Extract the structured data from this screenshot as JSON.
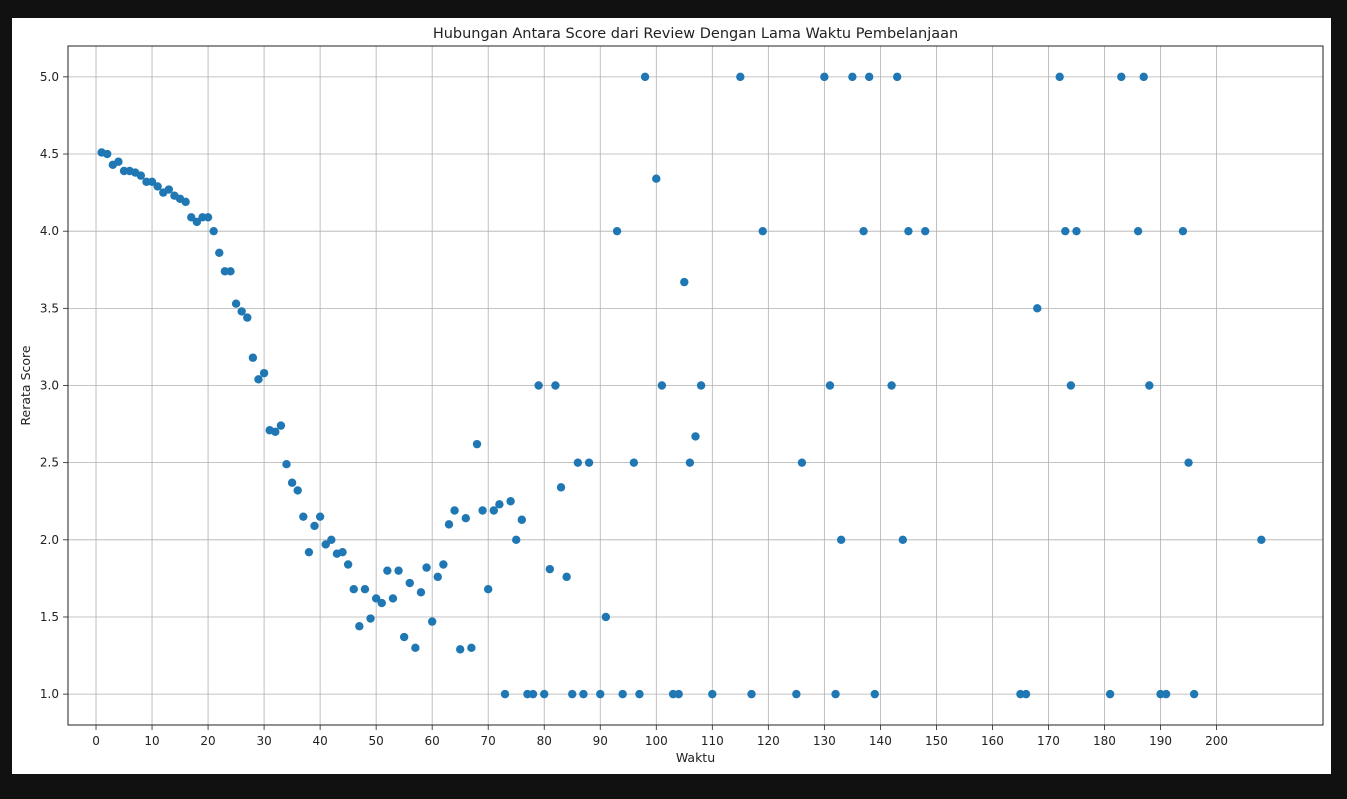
{
  "chart_data": {
    "type": "scatter",
    "title": "Hubungan Antara Score dari Review Dengan Lama Waktu Pembelanjaan",
    "xlabel": "Waktu",
    "ylabel": "Rerata Score",
    "xlim": [
      -5,
      219
    ],
    "ylim": [
      0.8,
      5.2
    ],
    "xticks": [
      0,
      10,
      20,
      30,
      40,
      50,
      60,
      70,
      80,
      90,
      100,
      110,
      120,
      130,
      140,
      150,
      160,
      170,
      180,
      190,
      200
    ],
    "yticks": [
      1.0,
      1.5,
      2.0,
      2.5,
      3.0,
      3.5,
      4.0,
      4.5,
      5.0
    ],
    "grid": true,
    "marker_color": "#1f77b4",
    "points": [
      [
        1,
        4.51
      ],
      [
        2,
        4.5
      ],
      [
        3,
        4.43
      ],
      [
        4,
        4.45
      ],
      [
        5,
        4.39
      ],
      [
        6,
        4.39
      ],
      [
        7,
        4.38
      ],
      [
        8,
        4.36
      ],
      [
        9,
        4.32
      ],
      [
        10,
        4.32
      ],
      [
        11,
        4.29
      ],
      [
        12,
        4.25
      ],
      [
        13,
        4.27
      ],
      [
        14,
        4.23
      ],
      [
        15,
        4.21
      ],
      [
        16,
        4.19
      ],
      [
        17,
        4.09
      ],
      [
        18,
        4.06
      ],
      [
        19,
        4.09
      ],
      [
        20,
        4.09
      ],
      [
        21,
        4.0
      ],
      [
        22,
        3.86
      ],
      [
        23,
        3.74
      ],
      [
        24,
        3.74
      ],
      [
        25,
        3.53
      ],
      [
        26,
        3.48
      ],
      [
        27,
        3.44
      ],
      [
        28,
        3.18
      ],
      [
        29,
        3.04
      ],
      [
        30,
        3.08
      ],
      [
        31,
        2.71
      ],
      [
        32,
        2.7
      ],
      [
        33,
        2.74
      ],
      [
        34,
        2.49
      ],
      [
        35,
        2.37
      ],
      [
        36,
        2.32
      ],
      [
        37,
        2.15
      ],
      [
        38,
        1.92
      ],
      [
        39,
        2.09
      ],
      [
        40,
        2.15
      ],
      [
        41,
        1.97
      ],
      [
        42,
        2.0
      ],
      [
        43,
        1.91
      ],
      [
        44,
        1.92
      ],
      [
        45,
        1.84
      ],
      [
        46,
        1.68
      ],
      [
        47,
        1.44
      ],
      [
        48,
        1.68
      ],
      [
        49,
        1.49
      ],
      [
        50,
        1.62
      ],
      [
        51,
        1.59
      ],
      [
        52,
        1.8
      ],
      [
        53,
        1.62
      ],
      [
        54,
        1.8
      ],
      [
        55,
        1.37
      ],
      [
        56,
        1.72
      ],
      [
        57,
        1.3
      ],
      [
        58,
        1.66
      ],
      [
        59,
        1.82
      ],
      [
        60,
        1.47
      ],
      [
        61,
        1.76
      ],
      [
        62,
        1.84
      ],
      [
        63,
        2.1
      ],
      [
        64,
        2.19
      ],
      [
        65,
        1.29
      ],
      [
        66,
        2.14
      ],
      [
        67,
        1.3
      ],
      [
        68,
        2.62
      ],
      [
        69,
        2.19
      ],
      [
        70,
        1.68
      ],
      [
        71,
        2.19
      ],
      [
        72,
        2.23
      ],
      [
        73,
        1.0
      ],
      [
        74,
        2.25
      ],
      [
        75,
        2.0
      ],
      [
        76,
        2.13
      ],
      [
        77,
        1.0
      ],
      [
        78,
        1.0
      ],
      [
        79,
        3.0
      ],
      [
        80,
        1.0
      ],
      [
        81,
        1.81
      ],
      [
        82,
        3.0
      ],
      [
        83,
        2.34
      ],
      [
        84,
        1.76
      ],
      [
        85,
        1.0
      ],
      [
        86,
        2.5
      ],
      [
        87,
        1.0
      ],
      [
        88,
        2.5
      ],
      [
        90,
        1.0
      ],
      [
        91,
        1.5
      ],
      [
        93,
        4.0
      ],
      [
        94,
        1.0
      ],
      [
        96,
        2.5
      ],
      [
        97,
        1.0
      ],
      [
        98,
        5.0
      ],
      [
        100,
        4.34
      ],
      [
        101,
        3.0
      ],
      [
        103,
        1.0
      ],
      [
        104,
        1.0
      ],
      [
        105,
        3.67
      ],
      [
        106,
        2.5
      ],
      [
        107,
        2.67
      ],
      [
        108,
        3.0
      ],
      [
        110,
        1.0
      ],
      [
        115,
        5.0
      ],
      [
        117,
        1.0
      ],
      [
        119,
        4.0
      ],
      [
        125,
        1.0
      ],
      [
        126,
        2.5
      ],
      [
        130,
        5.0
      ],
      [
        131,
        3.0
      ],
      [
        132,
        1.0
      ],
      [
        133,
        2.0
      ],
      [
        135,
        5.0
      ],
      [
        137,
        4.0
      ],
      [
        138,
        5.0
      ],
      [
        139,
        1.0
      ],
      [
        142,
        3.0
      ],
      [
        143,
        5.0
      ],
      [
        144,
        2.0
      ],
      [
        145,
        4.0
      ],
      [
        148,
        4.0
      ],
      [
        165,
        1.0
      ],
      [
        166,
        1.0
      ],
      [
        168,
        3.5
      ],
      [
        172,
        5.0
      ],
      [
        173,
        4.0
      ],
      [
        174,
        3.0
      ],
      [
        175,
        4.0
      ],
      [
        181,
        1.0
      ],
      [
        183,
        5.0
      ],
      [
        186,
        4.0
      ],
      [
        187,
        5.0
      ],
      [
        188,
        3.0
      ],
      [
        190,
        1.0
      ],
      [
        191,
        1.0
      ],
      [
        194,
        4.0
      ],
      [
        195,
        2.5
      ],
      [
        196,
        1.0
      ],
      [
        208,
        2.0
      ]
    ]
  }
}
